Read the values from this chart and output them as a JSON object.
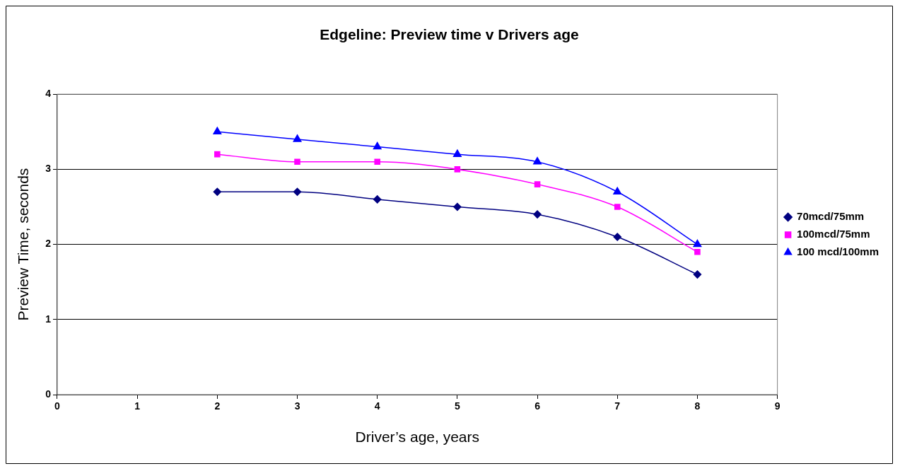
{
  "chart_data": {
    "type": "line",
    "title": "Edgeline: Preview time v Drivers age",
    "xlabel": "Driver’s age, years",
    "ylabel": "Preview Time, seconds",
    "x": [
      2,
      3,
      4,
      5,
      6,
      7,
      8
    ],
    "series": [
      {
        "name": "70mcd/75mm",
        "color": "#000080",
        "marker": "diamond",
        "values": [
          2.7,
          2.7,
          2.6,
          2.5,
          2.4,
          2.1,
          1.6
        ]
      },
      {
        "name": "100mcd/75mm",
        "color": "#ff00ff",
        "marker": "square",
        "values": [
          3.2,
          3.1,
          3.1,
          3.0,
          2.8,
          2.5,
          1.9
        ]
      },
      {
        "name": "100 mcd/100mm",
        "color": "#0000ff",
        "marker": "triangle",
        "values": [
          3.5,
          3.4,
          3.3,
          3.2,
          3.1,
          2.7,
          2.0
        ]
      }
    ],
    "xlim": [
      0,
      9
    ],
    "xticks": [
      0,
      1,
      2,
      3,
      4,
      5,
      6,
      7,
      8,
      9
    ],
    "ylim": [
      0,
      4
    ],
    "yticks": [
      0,
      1,
      2,
      3,
      4
    ],
    "grid": "y",
    "legend": "right",
    "line_style": "solid"
  }
}
